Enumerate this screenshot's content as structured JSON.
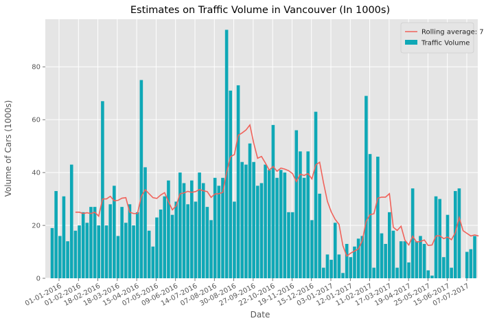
{
  "chart_data": {
    "type": "bar",
    "title": "Estimates on Traffic Volume in Vancouver (In 1000s)",
    "xlabel": "Date",
    "ylabel": "Volume of Cars (1000s)",
    "ylim": [
      0,
      98
    ],
    "yticks": [
      0,
      20,
      40,
      60,
      80
    ],
    "grid": true,
    "legend_position": "top-right",
    "legend": {
      "line_label": "Rolling average: 7",
      "bar_label": "Traffic Volume"
    },
    "colors": {
      "bars": "#0fa8b6",
      "line": "#f0625a",
      "plot_bg": "#e5e5e5",
      "grid": "#ffffff"
    },
    "xtick_labels": [
      "01-01-2016",
      "01-02-2016",
      "18-02-2016",
      "18-03-2016",
      "15-04-2016",
      "07-05-2016",
      "09-06-2016",
      "14-07-2016",
      "07-08-2016",
      "30-08-2016",
      "27-09-2016",
      "22-10-2016",
      "19-11-2016",
      "15-12-2016",
      "03-01-2017",
      "12-01-2017",
      "11-02-2017",
      "17-03-2017",
      "19-04-2017",
      "25-05-2017",
      "15-06-2017",
      "07-07-2017"
    ],
    "series": [
      {
        "name": "Traffic Volume",
        "type": "bar",
        "values": [
          19,
          33,
          16,
          31,
          14,
          43,
          18,
          20,
          25,
          21,
          27,
          27,
          20,
          67,
          20,
          28,
          35,
          16,
          27,
          21,
          28,
          20,
          25,
          75,
          42,
          18,
          12,
          23,
          26,
          31,
          37,
          24,
          29,
          40,
          36,
          28,
          37,
          29,
          40,
          36,
          27,
          22,
          38,
          35,
          38,
          94,
          71,
          29,
          73,
          44,
          43,
          51,
          44,
          35,
          36,
          43,
          41,
          58,
          38,
          41,
          40,
          25,
          25,
          56,
          48,
          38,
          48,
          22,
          63,
          32,
          4,
          9,
          7,
          21,
          9,
          2,
          13,
          8,
          12,
          15,
          16,
          69,
          47,
          4,
          46,
          17,
          13,
          25,
          18,
          4,
          14,
          14,
          6,
          34,
          14,
          16,
          13,
          3,
          1,
          31,
          30,
          8,
          24,
          4,
          33,
          34,
          0,
          10,
          11,
          16
        ]
      },
      {
        "name": "Rolling average: 7",
        "type": "line",
        "values": [
          null,
          null,
          null,
          null,
          null,
          null,
          25,
          25,
          24.5,
          24.8,
          24.5,
          25,
          23.5,
          30,
          30,
          31,
          29.3,
          29.5,
          30.3,
          30.5,
          25,
          24.5,
          24.5,
          31,
          33.5,
          32,
          30.5,
          30.2,
          31.5,
          32.4,
          29,
          25.9,
          27.4,
          32,
          32.3,
          32.9,
          32.5,
          32.8,
          33.6,
          33.1,
          32.8,
          30.6,
          31.9,
          32,
          32.5,
          40,
          46,
          46.8,
          54.1,
          55,
          56.1,
          58,
          51.1,
          45.4,
          46.1,
          43.6,
          40.9,
          42.3,
          40.5,
          41.7,
          41.3,
          40.7,
          39.6,
          36.6,
          39.4,
          38.9,
          39.6,
          37.6,
          42.9,
          43.9,
          36.1,
          29.1,
          25.1,
          22.3,
          20.4,
          12.3,
          8.4,
          9.5,
          10.3,
          11.1,
          14.2,
          21.6,
          24.1,
          24.4,
          30.3,
          30.7,
          30.7,
          32,
          19.3,
          18.1,
          19.7,
          14.4,
          12.6,
          15.9,
          13.7,
          13.9,
          14.5,
          12.4,
          12.6,
          16,
          16.1,
          15,
          15.6,
          14.6,
          17.3,
          23,
          18,
          17,
          16,
          16.4,
          16
        ]
      }
    ]
  }
}
